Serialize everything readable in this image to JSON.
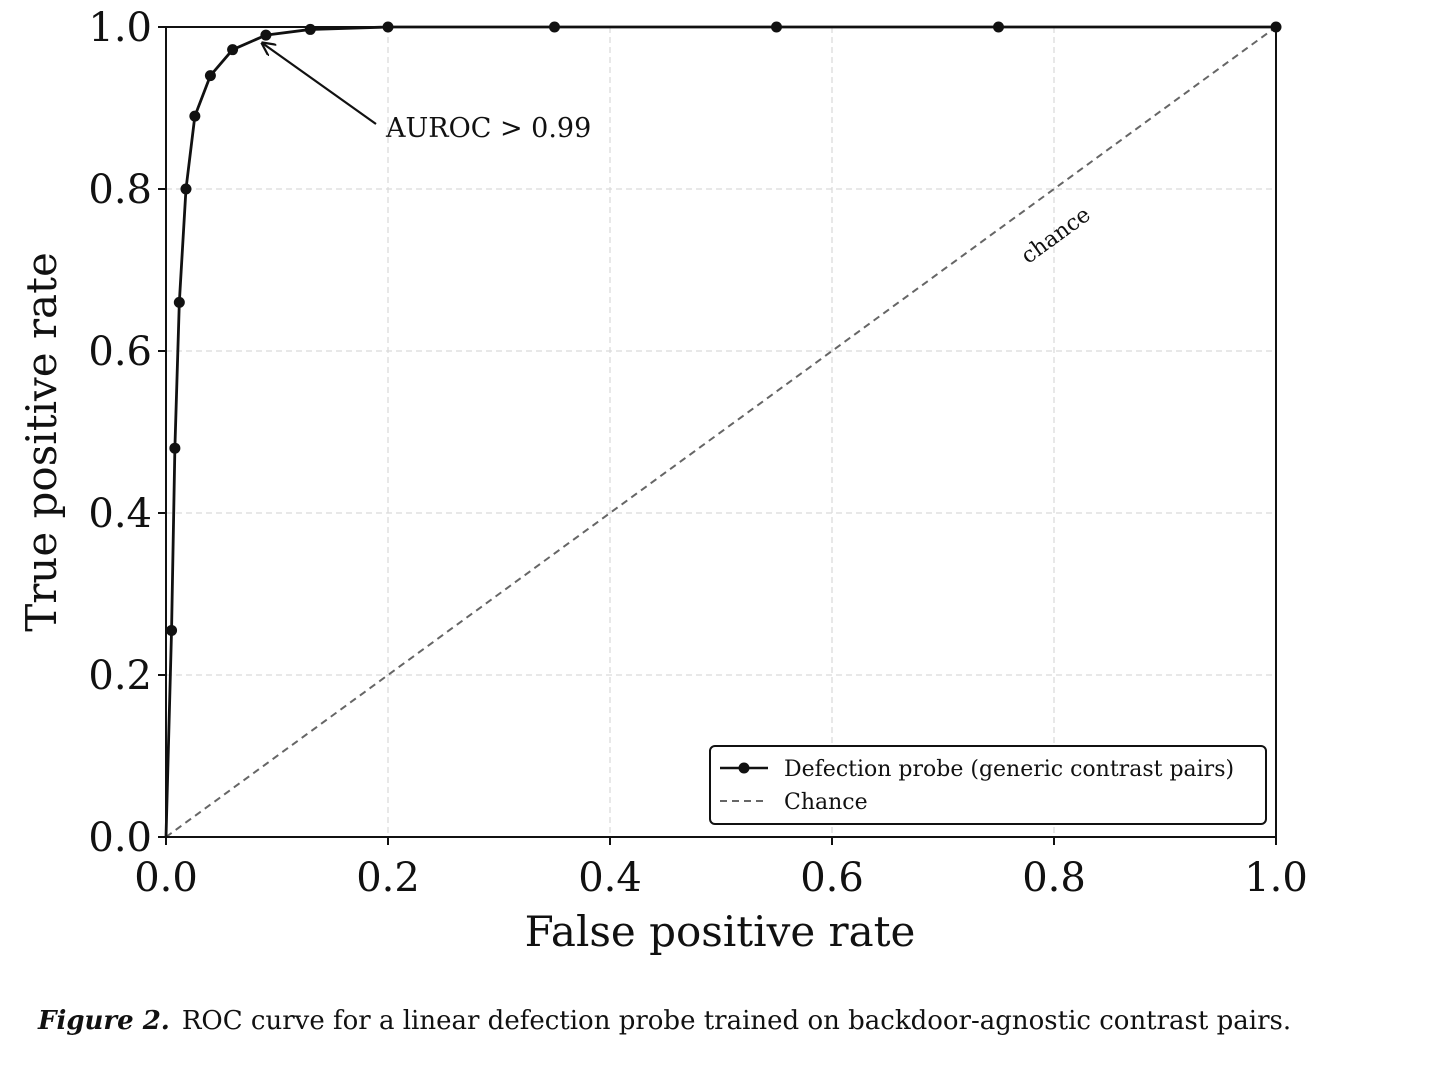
{
  "chart_data": {
    "type": "line",
    "title": "",
    "xlabel": "False positive rate",
    "ylabel": "True positive rate",
    "xlim": [
      0,
      1
    ],
    "ylim": [
      0,
      1
    ],
    "xticks": [
      "0.0",
      "0.2",
      "0.4",
      "0.6",
      "0.8",
      "1.0"
    ],
    "yticks": [
      "0.0",
      "0.2",
      "0.4",
      "0.6",
      "0.8",
      "1.0"
    ],
    "grid": true,
    "legend_position": "lower-right",
    "series": [
      {
        "name": "Defection probe (generic contrast pairs)",
        "color": "#111111",
        "style": "solid-with-markers",
        "x": [
          0.0,
          0.005,
          0.008,
          0.012,
          0.018,
          0.026,
          0.04,
          0.06,
          0.09,
          0.13,
          0.2,
          0.35,
          0.55,
          0.75,
          1.0
        ],
        "y": [
          0.0,
          0.255,
          0.48,
          0.66,
          0.8,
          0.89,
          0.94,
          0.972,
          0.99,
          0.997,
          1.0,
          1.0,
          1.0,
          1.0,
          1.0
        ]
      },
      {
        "name": "Chance",
        "color": "#666666",
        "style": "dashed",
        "x": [
          0,
          1
        ],
        "y": [
          0,
          1
        ]
      }
    ],
    "annotations": [
      {
        "text": "AUROC > 0.99",
        "points_to": [
          0.085,
          0.985
        ]
      },
      {
        "text": "chance",
        "at": [
          0.8,
          0.8
        ]
      }
    ]
  },
  "caption": {
    "label": "Figure 2.",
    "text": "ROC curve for a linear defection probe trained on backdoor-agnostic contrast pairs."
  }
}
